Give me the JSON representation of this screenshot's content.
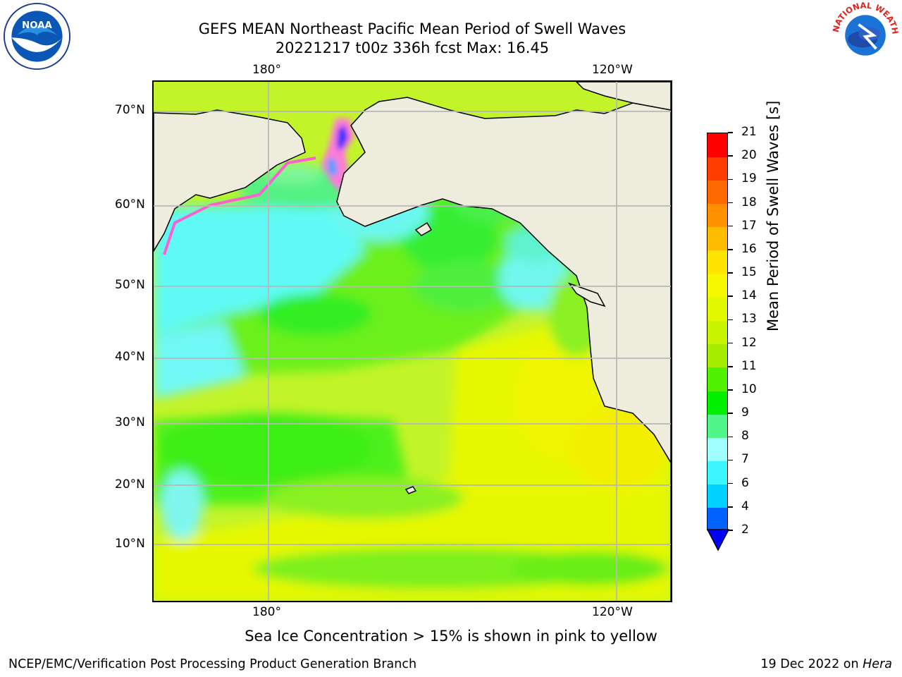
{
  "title_line1": "GEFS MEAN Northeast Pacific Mean Period of Swell Waves",
  "title_line2": "20221217 t00z 336h fcst   Max: 16.45",
  "logos": {
    "left": "NOAA",
    "right": "NATIONAL WEATHER SERVICE"
  },
  "map": {
    "lon_labels": [
      "180°",
      "120°W"
    ],
    "lat_labels": [
      "70°N",
      "60°N",
      "50°N",
      "40°N",
      "30°N",
      "20°N",
      "10°N"
    ],
    "land_color": "#eeecdc",
    "ocean_base_color": "#b9f04a"
  },
  "colorbar": {
    "title": "Mean Period of Swell Waves [s]",
    "levels": [
      "2",
      "4",
      "6",
      "7",
      "8",
      "9",
      "10",
      "11",
      "12",
      "13",
      "14",
      "15",
      "16",
      "17",
      "18",
      "19",
      "20",
      "21"
    ],
    "colors": [
      "#0063ff",
      "#00d3ff",
      "#3af7ff",
      "#a0ffff",
      "#4ff78b",
      "#00f000",
      "#4ff000",
      "#a6ec00",
      "#c8f400",
      "#e1f800",
      "#f5f800",
      "#ffe400",
      "#ffbb00",
      "#ff9000",
      "#ff6800",
      "#ff3d00",
      "#ff0000"
    ],
    "extend_color": "#0000ff"
  },
  "note": "Sea Ice Concentration > 15% is shown in pink to yellow",
  "footer_left": "NCEP/EMC/Verification Post Processing Product Generation Branch",
  "footer_right_date": "19 Dec 2022 on",
  "footer_right_machine": "Hera"
}
